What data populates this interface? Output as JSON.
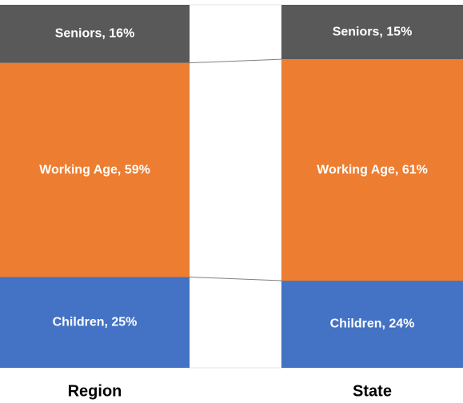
{
  "chart_data": {
    "type": "stacked-bar",
    "categories": [
      "Region",
      "State"
    ],
    "series": [
      {
        "name": "Children",
        "color": "#4472c4",
        "values": [
          25,
          24
        ],
        "value_labels": [
          "Children, 25%",
          "Children, 24%"
        ]
      },
      {
        "name": "Working Age",
        "color": "#ed7d31",
        "values": [
          59,
          61
        ],
        "value_labels": [
          "Working Age, 59%",
          "Working Age, 61%"
        ]
      },
      {
        "name": "Seniors",
        "color": "#595959",
        "values": [
          16,
          15
        ],
        "value_labels": [
          "Seniors, 16%",
          "Seniors, 15%"
        ]
      }
    ],
    "ylim": [
      0,
      100
    ]
  }
}
